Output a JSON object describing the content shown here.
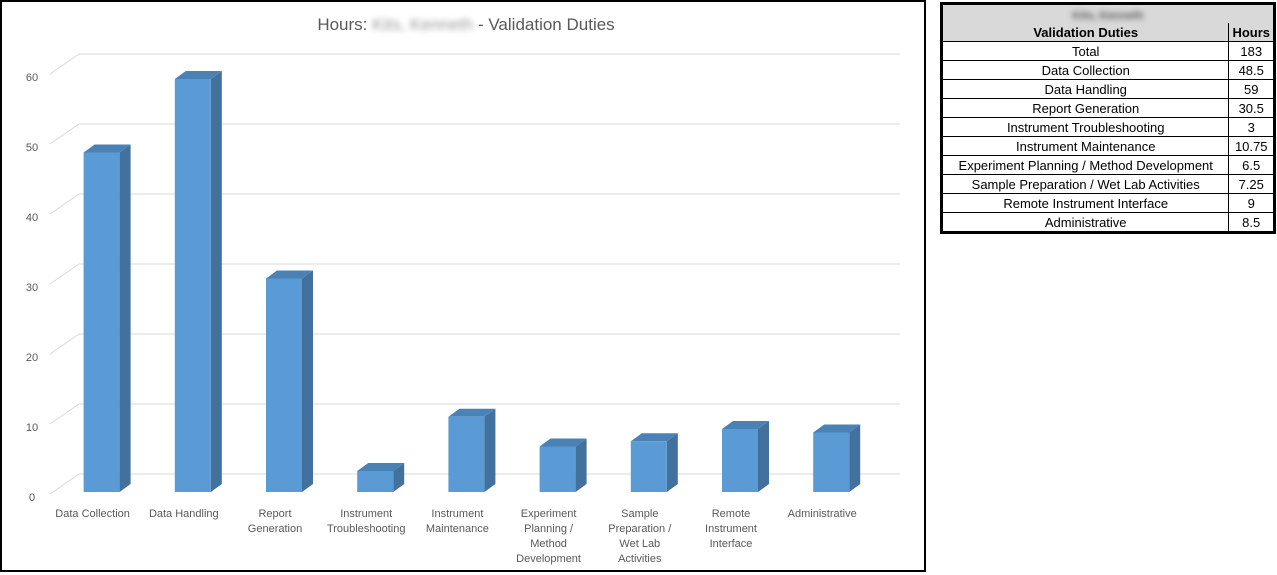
{
  "chart_data": {
    "type": "bar",
    "title_prefix": "Hours: ",
    "title_name": "Kits, Kenneth",
    "title_suffix": " - Validation Duties",
    "categories": [
      "Data Collection",
      "Data Handling",
      "Report Generation",
      "Instrument Troubleshooting",
      "Instrument Maintenance",
      "Experiment Planning / Method Development",
      "Sample Preparation / Wet Lab Activities",
      "Remote Instrument Interface",
      "Administrative"
    ],
    "category_lines": [
      [
        "Data Collection"
      ],
      [
        "Data Handling"
      ],
      [
        "Report",
        "Generation"
      ],
      [
        "Instrument",
        "Troubleshooting"
      ],
      [
        "Instrument",
        "Maintenance"
      ],
      [
        "Experiment",
        "Planning /",
        "Method",
        "Development"
      ],
      [
        "Sample",
        "Preparation /",
        "Wet Lab",
        "Activities"
      ],
      [
        "Remote",
        "Instrument",
        "Interface"
      ],
      [
        "Administrative"
      ]
    ],
    "values": [
      48.5,
      59,
      30.5,
      3,
      10.75,
      6.5,
      7.25,
      9,
      8.5
    ],
    "yticks": [
      0,
      10,
      20,
      30,
      40,
      50,
      60
    ],
    "ylim": [
      0,
      60
    ],
    "grid": true,
    "legend": "none",
    "bar_color": "#5b9bd5",
    "bar_side_color": "#41719c",
    "bar_top_color": "#4a82b6"
  },
  "table": {
    "name": "Kits, Kenneth",
    "col_duty": "Validation Duties",
    "col_hours": "Hours",
    "rows": [
      {
        "label": "Total",
        "hours": "183"
      },
      {
        "label": "Data Collection",
        "hours": "48.5"
      },
      {
        "label": "Data Handling",
        "hours": "59"
      },
      {
        "label": "Report Generation",
        "hours": "30.5"
      },
      {
        "label": "Instrument Troubleshooting",
        "hours": "3"
      },
      {
        "label": "Instrument Maintenance",
        "hours": "10.75"
      },
      {
        "label": "Experiment Planning / Method Development",
        "hours": "6.5"
      },
      {
        "label": "Sample Preparation / Wet Lab Activities",
        "hours": "7.25"
      },
      {
        "label": "Remote Instrument Interface",
        "hours": "9"
      },
      {
        "label": "Administrative",
        "hours": "8.5"
      }
    ]
  }
}
